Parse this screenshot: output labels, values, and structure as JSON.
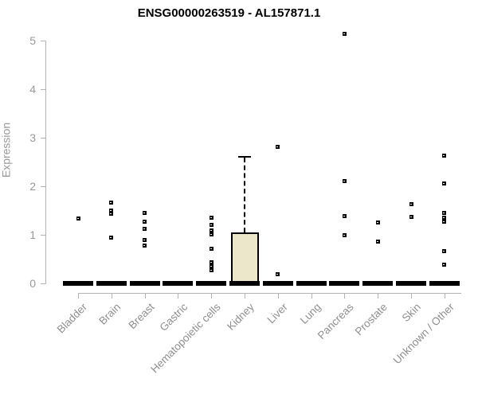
{
  "chart_data": {
    "type": "boxplot",
    "title": "ENSG00000263519 - AL157871.1",
    "ylabel": "Expression",
    "xlabel": "",
    "ylim": [
      0,
      5
    ],
    "yticks": [
      0,
      1,
      2,
      3,
      4,
      5
    ],
    "grid": false,
    "legend": false,
    "categories": [
      "Bladder",
      "Brain",
      "Breast",
      "Gastric",
      "Hematopoietic cells",
      "Kidney",
      "Liver",
      "Lung",
      "Pancreas",
      "Prostate",
      "Skin",
      "Unknown / Other"
    ],
    "box_fill_color": "#ece6cb",
    "box_line_color": "#000000",
    "point_color": "#000000",
    "axis_color": "#b3b3b3",
    "tick_label_color": "#999999",
    "boxes": [
      {
        "category": "Bladder",
        "q1": 0,
        "median": 0,
        "q3": 0,
        "whisker_high": 0,
        "points": [
          1.33
        ]
      },
      {
        "category": "Brain",
        "q1": 0,
        "median": 0,
        "q3": 0,
        "whisker_high": 0,
        "points": [
          1.66,
          1.5,
          1.43,
          0.93
        ]
      },
      {
        "category": "Breast",
        "q1": 0,
        "median": 0,
        "q3": 0,
        "whisker_high": 0,
        "points": [
          1.44,
          1.26,
          1.11,
          0.88,
          0.77
        ]
      },
      {
        "category": "Gastric",
        "q1": 0,
        "median": 0,
        "q3": 0,
        "whisker_high": 0,
        "points": []
      },
      {
        "category": "Hematopoietic cells",
        "q1": 0,
        "median": 0,
        "q3": 0,
        "whisker_high": 0,
        "points": [
          1.35,
          1.2,
          1.09,
          1.0,
          0.71,
          0.43,
          0.35,
          0.27
        ]
      },
      {
        "category": "Kidney",
        "q1": 0,
        "median": 0,
        "q3": 1.05,
        "whisker_high": 2.58,
        "points": []
      },
      {
        "category": "Liver",
        "q1": 0,
        "median": 0,
        "q3": 0,
        "whisker_high": 0,
        "points": [
          2.81,
          0.18
        ]
      },
      {
        "category": "Lung",
        "q1": 0,
        "median": 0,
        "q3": 0,
        "whisker_high": 0,
        "points": []
      },
      {
        "category": "Pancreas",
        "q1": 0,
        "median": 0,
        "q3": 0,
        "whisker_high": 0,
        "points": [
          5.14,
          2.1,
          1.38,
          0.99
        ]
      },
      {
        "category": "Prostate",
        "q1": 0,
        "median": 0,
        "q3": 0,
        "whisker_high": 0,
        "points": [
          1.25,
          0.85
        ]
      },
      {
        "category": "Skin",
        "q1": 0,
        "median": 0,
        "q3": 0,
        "whisker_high": 0,
        "points": [
          1.63,
          1.36
        ]
      },
      {
        "category": "Unknown / Other",
        "q1": 0,
        "median": 0,
        "q3": 0,
        "whisker_high": 0,
        "points": [
          2.63,
          2.05,
          1.44,
          1.35,
          1.26,
          0.66,
          0.37
        ]
      }
    ]
  }
}
